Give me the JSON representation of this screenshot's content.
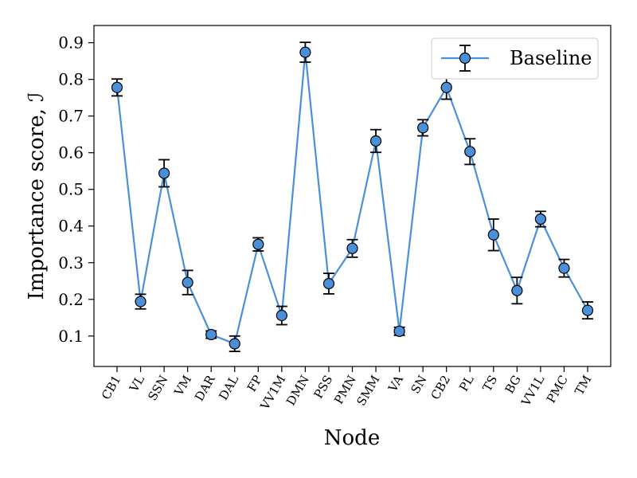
{
  "chart_data": {
    "type": "line",
    "xlabel": "Node",
    "ylabel": "Importance score, ℐ",
    "ylim": [
      0.017,
      0.947
    ],
    "yticks": [
      "0.1",
      "0.2",
      "0.3",
      "0.4",
      "0.5",
      "0.6",
      "0.7",
      "0.8",
      "0.9"
    ],
    "categories": [
      "CB1",
      "VL",
      "SSN",
      "VM",
      "DAR",
      "DAL",
      "FP",
      "VV1M",
      "DMN",
      "PSS",
      "PMN",
      "SMM",
      "VA",
      "SN",
      "CB2",
      "PL",
      "TS",
      "BG",
      "VV1L",
      "PMC",
      "TM"
    ],
    "legend_position": "top-right",
    "series": [
      {
        "name": "Baseline",
        "color": "#4a90d9",
        "values": [
          0.778,
          0.194,
          0.544,
          0.246,
          0.104,
          0.079,
          0.35,
          0.156,
          0.874,
          0.243,
          0.339,
          0.632,
          0.113,
          0.668,
          0.778,
          0.603,
          0.376,
          0.224,
          0.419,
          0.285,
          0.17
        ],
        "errors": [
          0.023,
          0.02,
          0.037,
          0.033,
          0.01,
          0.021,
          0.018,
          0.025,
          0.027,
          0.028,
          0.024,
          0.031,
          0.011,
          0.022,
          0.032,
          0.035,
          0.043,
          0.036,
          0.021,
          0.024,
          0.023
        ]
      }
    ]
  }
}
